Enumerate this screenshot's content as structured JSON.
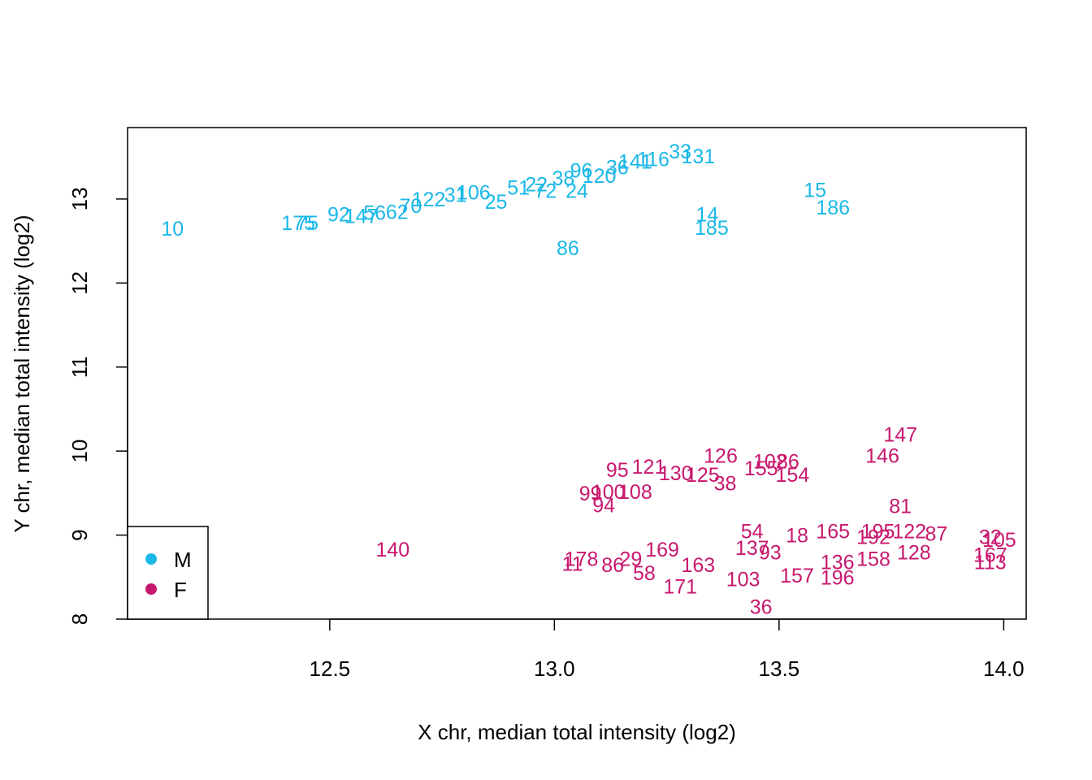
{
  "chart_data": {
    "type": "scatter",
    "title": "",
    "xlabel": "X chr, median total intensity (log2)",
    "ylabel": "Y chr, median total intensity (log2)",
    "xlim": [
      12.05,
      14.05
    ],
    "ylim": [
      8.0,
      13.85
    ],
    "xticks": [
      12.5,
      13.0,
      13.5,
      14.0
    ],
    "xtick_labels": [
      "12.5",
      "13.0",
      "13.5",
      "14.0"
    ],
    "yticks": [
      8,
      9,
      10,
      11,
      12,
      13
    ],
    "ytick_labels": [
      "8",
      "9",
      "10",
      "11",
      "12",
      "13"
    ],
    "grid": false,
    "legend_position": "bottom-left",
    "series": [
      {
        "name": "M",
        "color": "#1ab8e8",
        "points": [
          {
            "label": "10",
            "x": 12.15,
            "y": 12.65
          },
          {
            "label": "175",
            "x": 12.43,
            "y": 12.72
          },
          {
            "label": "75",
            "x": 12.45,
            "y": 12.72
          },
          {
            "label": "92",
            "x": 12.52,
            "y": 12.82
          },
          {
            "label": "147",
            "x": 12.57,
            "y": 12.8
          },
          {
            "label": "56",
            "x": 12.6,
            "y": 12.84
          },
          {
            "label": "62",
            "x": 12.65,
            "y": 12.85
          },
          {
            "label": "70",
            "x": 12.68,
            "y": 12.92
          },
          {
            "label": "122",
            "x": 12.72,
            "y": 13.0
          },
          {
            "label": "31",
            "x": 12.78,
            "y": 13.05
          },
          {
            "label": "106",
            "x": 12.82,
            "y": 13.08
          },
          {
            "label": "25",
            "x": 12.87,
            "y": 12.97
          },
          {
            "label": "51",
            "x": 12.92,
            "y": 13.14
          },
          {
            "label": "22",
            "x": 12.96,
            "y": 13.18
          },
          {
            "label": "72",
            "x": 12.98,
            "y": 13.1
          },
          {
            "label": "24",
            "x": 13.05,
            "y": 13.1
          },
          {
            "label": "38",
            "x": 13.02,
            "y": 13.25
          },
          {
            "label": "96",
            "x": 13.06,
            "y": 13.34
          },
          {
            "label": "120",
            "x": 13.1,
            "y": 13.28
          },
          {
            "label": "36",
            "x": 13.14,
            "y": 13.38
          },
          {
            "label": "141",
            "x": 13.18,
            "y": 13.45
          },
          {
            "label": "116",
            "x": 13.22,
            "y": 13.48
          },
          {
            "label": "131",
            "x": 13.32,
            "y": 13.51
          },
          {
            "label": "33",
            "x": 13.28,
            "y": 13.57
          },
          {
            "label": "14",
            "x": 13.34,
            "y": 12.82
          },
          {
            "label": "185",
            "x": 13.35,
            "y": 12.66
          },
          {
            "label": "86",
            "x": 13.03,
            "y": 12.42
          },
          {
            "label": "15",
            "x": 13.58,
            "y": 13.11
          },
          {
            "label": "186",
            "x": 13.62,
            "y": 12.9
          }
        ]
      },
      {
        "name": "F",
        "color": "#c8186e",
        "points": [
          {
            "label": "140",
            "x": 12.64,
            "y": 8.83
          },
          {
            "label": "147",
            "x": 13.77,
            "y": 10.2
          },
          {
            "label": "146",
            "x": 13.73,
            "y": 9.95
          },
          {
            "label": "126",
            "x": 13.37,
            "y": 9.95
          },
          {
            "label": "102",
            "x": 13.48,
            "y": 9.88
          },
          {
            "label": "86",
            "x": 13.52,
            "y": 9.88
          },
          {
            "label": "154",
            "x": 13.53,
            "y": 9.72
          },
          {
            "label": "155",
            "x": 13.46,
            "y": 9.8
          },
          {
            "label": "125",
            "x": 13.33,
            "y": 9.72
          },
          {
            "label": "38",
            "x": 13.38,
            "y": 9.62
          },
          {
            "label": "95",
            "x": 13.14,
            "y": 9.78
          },
          {
            "label": "121",
            "x": 13.21,
            "y": 9.82
          },
          {
            "label": "130",
            "x": 13.27,
            "y": 9.74
          },
          {
            "label": "108",
            "x": 13.18,
            "y": 9.52
          },
          {
            "label": "99",
            "x": 13.08,
            "y": 9.5
          },
          {
            "label": "100",
            "x": 13.12,
            "y": 9.52
          },
          {
            "label": "94",
            "x": 13.11,
            "y": 9.36
          },
          {
            "label": "81",
            "x": 13.77,
            "y": 9.35
          },
          {
            "label": "195",
            "x": 13.72,
            "y": 9.05
          },
          {
            "label": "122",
            "x": 13.79,
            "y": 9.05
          },
          {
            "label": "87",
            "x": 13.85,
            "y": 9.02
          },
          {
            "label": "32",
            "x": 13.97,
            "y": 8.98
          },
          {
            "label": "105",
            "x": 13.99,
            "y": 8.95
          },
          {
            "label": "113",
            "x": 13.97,
            "y": 8.68
          },
          {
            "label": "167",
            "x": 13.97,
            "y": 8.77
          },
          {
            "label": "54",
            "x": 13.44,
            "y": 9.05
          },
          {
            "label": "18",
            "x": 13.54,
            "y": 9.0
          },
          {
            "label": "165",
            "x": 13.62,
            "y": 9.05
          },
          {
            "label": "192",
            "x": 13.71,
            "y": 8.98
          },
          {
            "label": "128",
            "x": 13.8,
            "y": 8.8
          },
          {
            "label": "169",
            "x": 13.24,
            "y": 8.83
          },
          {
            "label": "178",
            "x": 13.06,
            "y": 8.72
          },
          {
            "label": "11",
            "x": 13.04,
            "y": 8.66
          },
          {
            "label": "86",
            "x": 13.13,
            "y": 8.65
          },
          {
            "label": "58",
            "x": 13.2,
            "y": 8.55
          },
          {
            "label": "29",
            "x": 13.17,
            "y": 8.72
          },
          {
            "label": "171",
            "x": 13.28,
            "y": 8.39
          },
          {
            "label": "163",
            "x": 13.32,
            "y": 8.65
          },
          {
            "label": "103",
            "x": 13.42,
            "y": 8.48
          },
          {
            "label": "36",
            "x": 13.46,
            "y": 8.15
          },
          {
            "label": "137",
            "x": 13.44,
            "y": 8.85
          },
          {
            "label": "93",
            "x": 13.48,
            "y": 8.8
          },
          {
            "label": "157",
            "x": 13.54,
            "y": 8.52
          },
          {
            "label": "196",
            "x": 13.63,
            "y": 8.5
          },
          {
            "label": "136",
            "x": 13.63,
            "y": 8.68
          },
          {
            "label": "158",
            "x": 13.71,
            "y": 8.72
          }
        ]
      }
    ]
  },
  "legend": {
    "items": [
      {
        "label": "M",
        "color": "#1ab8e8"
      },
      {
        "label": "F",
        "color": "#c8186e"
      }
    ]
  }
}
